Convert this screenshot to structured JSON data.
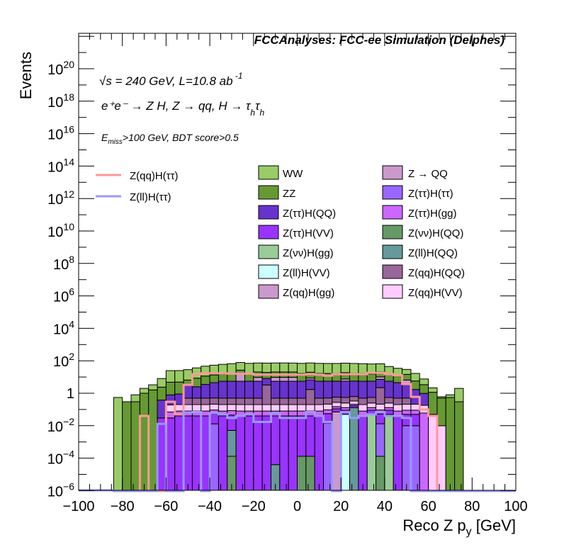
{
  "chart_data": {
    "type": "bar",
    "subtype": "stacked-histogram-log",
    "title": "FCCAnalyses: FCC-ee Simulation (Delphes)",
    "annotations": {
      "energy": "√s = 240 GeV, L=10.8 ab",
      "lumi_exp": "-1",
      "process": "e⁺e⁻ → Z H, Z → qq, H → τ",
      "process_sub": "h",
      "cuts_main": "E",
      "cuts_sub": "miss",
      "cuts_rest": ">100 GeV, BDT score>0.5"
    },
    "xlabel": "Reco Z p",
    "xlabel_sub": "y",
    "xlabel_unit": " [GeV]",
    "ylabel": "Events",
    "xlim": [
      -100,
      100
    ],
    "ylim_log10": [
      -6,
      22.2
    ],
    "yscale": "log",
    "x_ticks": [
      -100,
      -80,
      -60,
      -40,
      -20,
      0,
      20,
      40,
      60,
      80,
      100
    ],
    "x_tick_labels": [
      "−100",
      "−80",
      "−60",
      "−40",
      "−20",
      "0",
      "20",
      "40",
      "60",
      "80",
      "100"
    ],
    "y_tick_exponents": [
      -6,
      -4,
      -2,
      0,
      2,
      4,
      6,
      8,
      10,
      12,
      14,
      16,
      18,
      20
    ],
    "bin_start": -84,
    "bin_width": 4,
    "stack": [
      {
        "name": "Z(νν)H(QQ)",
        "color": "#669966",
        "values": [
          0,
          0,
          0,
          0,
          0,
          0,
          0,
          0,
          0,
          0,
          0,
          0,
          0,
          0.00013,
          0,
          0,
          0,
          0,
          0,
          0,
          0,
          0.00013,
          0.00013,
          0,
          0,
          0,
          0,
          0,
          0,
          0,
          0.00013,
          0,
          0,
          0,
          0,
          0,
          0,
          0,
          0,
          0
        ]
      },
      {
        "name": "Z(ll)H(QQ)",
        "color": "#669999",
        "values": [
          0,
          0,
          0,
          0,
          0,
          0,
          0,
          0,
          0,
          0,
          0,
          0,
          0,
          0.005,
          0,
          0,
          0,
          0,
          4e-05,
          0,
          0,
          0,
          0,
          0,
          0,
          0,
          0,
          0.13,
          0,
          0,
          0,
          0,
          0,
          0,
          0,
          0,
          0,
          0,
          0,
          0
        ]
      },
      {
        "name": "Z(νν)H(gg)",
        "color": "#99cc99",
        "values": [
          0,
          0,
          0,
          0,
          0,
          0,
          0,
          0,
          0,
          0,
          0,
          0,
          0,
          0,
          0,
          0,
          0,
          0,
          0,
          0,
          0,
          0,
          0,
          0,
          0,
          0,
          0,
          0,
          0,
          0.05,
          0,
          0.05,
          0,
          0,
          0,
          0,
          0,
          0,
          0,
          0
        ]
      },
      {
        "name": "Z(ll)H(VV)",
        "color": "#ccffff",
        "values": [
          0,
          0,
          0,
          0,
          0,
          0,
          0,
          0,
          0,
          0,
          0,
          0,
          0,
          0,
          0,
          0,
          0,
          0,
          0,
          0,
          0,
          0,
          0,
          0,
          0,
          0,
          0.05,
          0,
          0,
          0,
          0,
          0,
          0,
          0,
          0,
          0,
          0,
          0,
          0,
          0
        ]
      },
      {
        "name": "Z(qq)H(gg)",
        "color": "#cc99cc",
        "values": [
          0,
          0,
          0,
          0,
          0,
          0,
          0,
          0,
          0,
          0,
          0,
          0,
          0,
          0,
          0,
          0,
          0,
          0,
          0,
          0,
          0,
          0,
          0,
          0,
          0,
          0.07,
          0,
          0,
          0,
          0,
          0,
          0,
          0,
          0,
          0,
          0,
          0,
          0,
          0,
          0
        ]
      },
      {
        "name": "Z(ττ)H(ττ)",
        "color": "#9966ff",
        "values": [
          0,
          0,
          0,
          0,
          0,
          0,
          0,
          0,
          0,
          0,
          0,
          0.013,
          0,
          0,
          0,
          0,
          0,
          0,
          0,
          0,
          0,
          0,
          0,
          0,
          0.015,
          0,
          0,
          0,
          0,
          0,
          0.013,
          0,
          0,
          0.01,
          0.01,
          0,
          0,
          0,
          0,
          0
        ]
      },
      {
        "name": "Z(ττ)H(VV)",
        "color": "#9933ff",
        "values": [
          0,
          0,
          0,
          0,
          0,
          0.03,
          0.03,
          0.04,
          0.04,
          0.04,
          0.04,
          0.04,
          0.04,
          0.04,
          0.04,
          0.04,
          0.04,
          0.04,
          0.04,
          0.04,
          0.04,
          0.04,
          0.04,
          0.04,
          0.04,
          0.04,
          0.04,
          0.04,
          0.04,
          0.04,
          0.04,
          0.04,
          0.04,
          0.04,
          0.04,
          0,
          0,
          0,
          0,
          0
        ]
      },
      {
        "name": "Z(ττ)H(gg)",
        "color": "#cc66ff",
        "values": [
          0,
          0,
          0,
          0,
          0,
          0,
          0.04,
          0.04,
          0.04,
          0.04,
          0.04,
          0.04,
          0.04,
          0.04,
          0.04,
          0.04,
          0.04,
          0.04,
          0.04,
          0.04,
          0.04,
          0.04,
          0.04,
          0.04,
          0.04,
          0.04,
          0.04,
          0.04,
          0.04,
          0.04,
          0.04,
          0.04,
          0.04,
          0.04,
          0.04,
          0.06,
          0,
          0,
          0,
          0
        ]
      },
      {
        "name": "Z(qq)H(VV)",
        "color": "#ffccff",
        "values": [
          0,
          0,
          0,
          0,
          0,
          0,
          0.12,
          0.12,
          0.12,
          0.12,
          0.12,
          0.12,
          0.12,
          0.12,
          0.12,
          0.12,
          0.12,
          0.12,
          0.12,
          0.12,
          0.12,
          0.12,
          0.12,
          0.12,
          0.12,
          0.12,
          0.12,
          0.12,
          0.12,
          0.12,
          0.12,
          0.12,
          0.12,
          0.12,
          0.12,
          0.12,
          0.05,
          0.01,
          0,
          0
        ]
      },
      {
        "name": "Z(qq)H(QQ)",
        "color": "#996699",
        "values": [
          0,
          0,
          0,
          0,
          0,
          0,
          0,
          0,
          0.3,
          0.3,
          0.3,
          0.3,
          0.3,
          0.3,
          0.3,
          0.3,
          0.3,
          3,
          0.3,
          0.3,
          0.3,
          0.3,
          1.5,
          0.3,
          0.3,
          0.3,
          0.3,
          0.3,
          0.3,
          0.3,
          2,
          0.3,
          0.3,
          0.3,
          0,
          0,
          0,
          0,
          0,
          0
        ]
      },
      {
        "name": "Z(ττ)H(QQ)",
        "color": "#6633cc",
        "values": [
          0,
          0,
          0,
          0,
          0,
          0.35,
          0.6,
          0.7,
          3,
          2,
          3,
          4,
          5,
          5,
          5,
          5,
          5,
          5,
          5,
          5,
          5,
          5,
          5,
          5,
          5,
          5,
          5,
          5,
          5,
          5,
          5,
          5,
          4,
          3,
          1.5,
          0.8,
          0,
          0,
          0,
          0
        ]
      },
      {
        "name": "Z → QQ",
        "color": "#cc99cc",
        "values": [
          0,
          0,
          0,
          0,
          0,
          0,
          0,
          0,
          0,
          0,
          0,
          0,
          0,
          0,
          10,
          0,
          4,
          0,
          4,
          4,
          4,
          0,
          2,
          0,
          0,
          0,
          2,
          0,
          0,
          0,
          3,
          0,
          0,
          3,
          0,
          0,
          0,
          0,
          0,
          0
        ]
      },
      {
        "name": "ZZ",
        "color": "#669933",
        "values": [
          0,
          0.3,
          0.3,
          1,
          1.6,
          2,
          4,
          4,
          3,
          6,
          8,
          9,
          10,
          11,
          11,
          11,
          11,
          11,
          11,
          11,
          11,
          11,
          11,
          11,
          11,
          11,
          11,
          11,
          11,
          10,
          10,
          9,
          8,
          8,
          4,
          2.4,
          1.1,
          0.5,
          0.55,
          0.3
        ]
      },
      {
        "name": "WW",
        "color": "#99cc66",
        "values": [
          0.55,
          0,
          0.5,
          1,
          1.7,
          5.7,
          20,
          20,
          22,
          28,
          35,
          40,
          45,
          50,
          52,
          53,
          53,
          53,
          53,
          53,
          52,
          53,
          54,
          53,
          52,
          52,
          53,
          52,
          50,
          48,
          45,
          30,
          22,
          15,
          11,
          4.2,
          1,
          0.1,
          0.25,
          1.7
        ]
      }
    ],
    "lines": [
      {
        "name": "Z(qq)H(ττ)",
        "color": "#ff9999",
        "values": [
          0,
          0,
          0,
          0.04,
          0,
          0,
          0.3,
          0.05,
          3.3,
          15,
          17,
          17,
          17,
          16,
          16,
          16,
          14,
          14,
          14,
          14,
          14,
          14,
          15,
          14,
          12,
          15,
          15,
          15,
          15,
          18,
          18,
          15,
          13,
          3.7,
          0.6,
          0.1,
          0.04,
          0,
          0,
          0
        ]
      },
      {
        "name": "Z(ll)H(ττ)",
        "color": "#9999ff",
        "values": [
          0,
          0,
          0,
          0,
          0,
          0.013,
          0,
          0,
          0.066,
          0.07,
          0,
          0.06,
          0.05,
          0.03,
          0.04,
          0.05,
          0.017,
          0.017,
          0.06,
          0.03,
          0.03,
          0.03,
          0.07,
          0.04,
          0.017,
          0,
          0.07,
          0.03,
          0.04,
          0.05,
          0.07,
          0.04,
          0.04,
          0.03,
          0,
          0,
          0,
          0,
          0,
          0
        ]
      }
    ],
    "legend": {
      "placement": "top-center",
      "lines": [
        "Z(qq)H(ττ)",
        "Z(ll)H(ττ)"
      ],
      "col1": [
        {
          "label": "WW",
          "color": "#99cc66"
        },
        {
          "label": "ZZ",
          "color": "#669933"
        },
        {
          "label": "Z(ττ)H(QQ)",
          "color": "#6633cc"
        },
        {
          "label": "Z(ττ)H(VV)",
          "color": "#9933ff"
        },
        {
          "label": "Z(νν)H(gg)",
          "color": "#99cc99"
        },
        {
          "label": "Z(ll)H(VV)",
          "color": "#ccffff"
        },
        {
          "label": "Z(qq)H(gg)",
          "color": "#cc99cc"
        }
      ],
      "col2": [
        {
          "label": "Z → QQ",
          "color": "#cc99cc"
        },
        {
          "label": "Z(ττ)H(ττ)",
          "color": "#9966ff"
        },
        {
          "label": "Z(ττ)H(gg)",
          "color": "#cc66ff"
        },
        {
          "label": "Z(νν)H(QQ)",
          "color": "#669966"
        },
        {
          "label": "Z(ll)H(QQ)",
          "color": "#669999"
        },
        {
          "label": "Z(qq)H(QQ)",
          "color": "#996699"
        },
        {
          "label": "Z(qq)H(VV)",
          "color": "#ffccff"
        }
      ]
    }
  }
}
